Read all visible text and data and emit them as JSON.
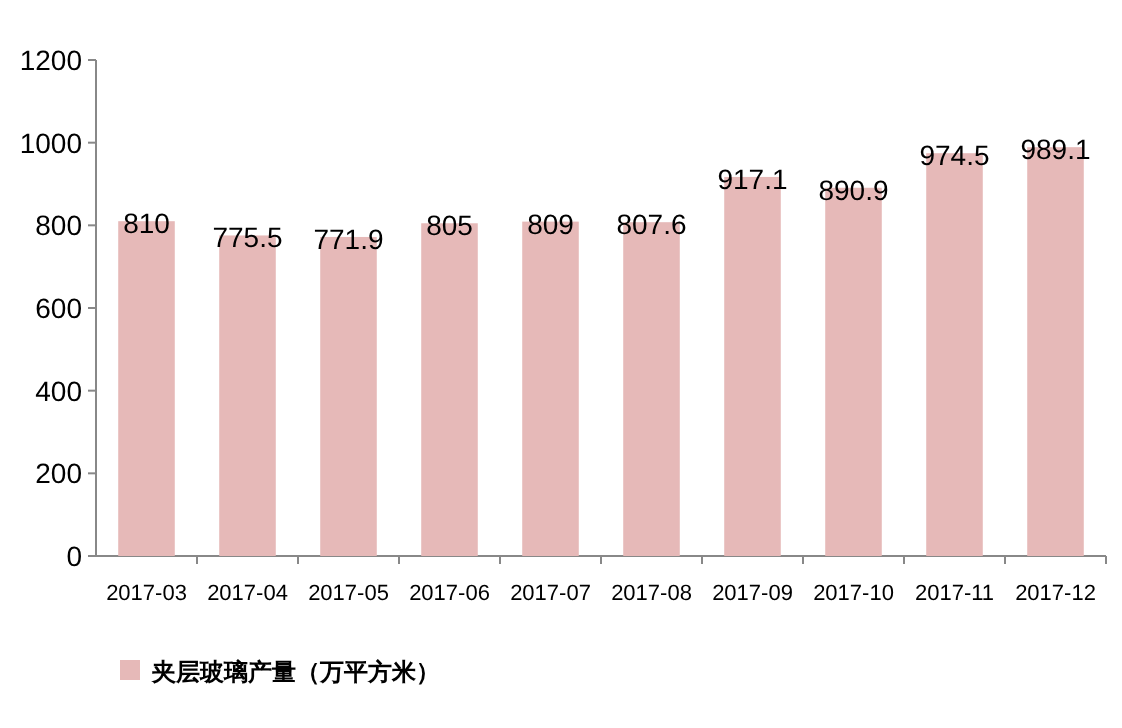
{
  "chart_data": {
    "type": "bar",
    "categories": [
      "2017-03",
      "2017-04",
      "2017-05",
      "2017-06",
      "2017-07",
      "2017-08",
      "2017-09",
      "2017-10",
      "2017-11",
      "2017-12"
    ],
    "series": [
      {
        "name": "夹层玻璃产量（万平方米）",
        "color": "#e6b9b8",
        "values": [
          810,
          775.5,
          771.9,
          805,
          809,
          807.6,
          917.1,
          890.9,
          974.5,
          989.1
        ]
      }
    ],
    "ylim": [
      0,
      1200
    ],
    "yticks": [
      0,
      200,
      400,
      600,
      800,
      1000,
      1200
    ],
    "data_labels": true,
    "legend": "bottom"
  }
}
